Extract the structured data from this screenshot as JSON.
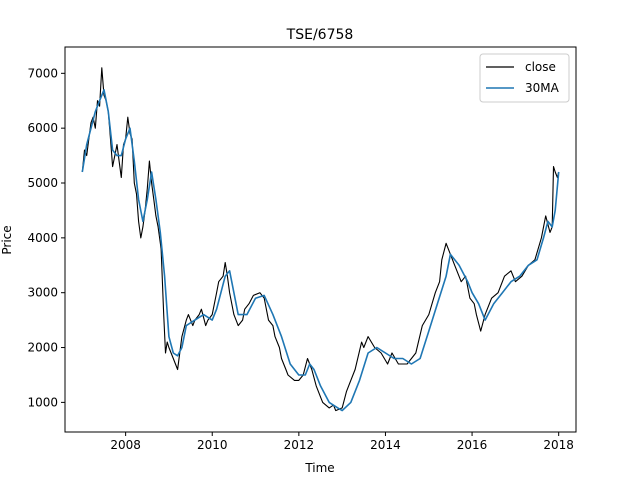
{
  "chart_data": {
    "type": "line",
    "title": "TSE/6758",
    "xlabel": "Time",
    "ylabel": "Price",
    "xlim": [
      2006.6,
      2018.4
    ],
    "ylim": [
      460,
      7480
    ],
    "xticks": [
      2008,
      2010,
      2012,
      2014,
      2016,
      2018
    ],
    "yticks": [
      1000,
      2000,
      3000,
      4000,
      5000,
      6000,
      7000
    ],
    "grid": false,
    "legend": "top-right",
    "colors": {
      "close": "#000000",
      "30MA": "#1f77b4"
    },
    "series": [
      {
        "name": "close",
        "x": [
          2007.0,
          2007.05,
          2007.1,
          2007.15,
          2007.2,
          2007.25,
          2007.3,
          2007.35,
          2007.4,
          2007.45,
          2007.5,
          2007.55,
          2007.6,
          2007.65,
          2007.7,
          2007.75,
          2007.8,
          2007.85,
          2007.9,
          2007.95,
          2008.0,
          2008.05,
          2008.1,
          2008.15,
          2008.2,
          2008.25,
          2008.3,
          2008.35,
          2008.4,
          2008.45,
          2008.5,
          2008.55,
          2008.6,
          2008.65,
          2008.7,
          2008.75,
          2008.82,
          2008.88,
          2008.92,
          2008.96,
          2009.0,
          2009.1,
          2009.2,
          2009.3,
          2009.4,
          2009.45,
          2009.55,
          2009.6,
          2009.7,
          2009.75,
          2009.85,
          2009.9,
          2010.0,
          2010.1,
          2010.15,
          2010.25,
          2010.3,
          2010.35,
          2010.4,
          2010.5,
          2010.6,
          2010.7,
          2010.75,
          2010.85,
          2010.95,
          2011.1,
          2011.2,
          2011.3,
          2011.4,
          2011.45,
          2011.55,
          2011.6,
          2011.7,
          2011.75,
          2011.9,
          2012.0,
          2012.1,
          2012.2,
          2012.25,
          2012.3,
          2012.4,
          2012.5,
          2012.55,
          2012.7,
          2012.8,
          2012.85,
          2013.0,
          2013.1,
          2013.2,
          2013.3,
          2013.45,
          2013.5,
          2013.6,
          2013.75,
          2013.9,
          2014.05,
          2014.15,
          2014.3,
          2014.5,
          2014.7,
          2014.85,
          2015.0,
          2015.15,
          2015.25,
          2015.3,
          2015.4,
          2015.5,
          2015.6,
          2015.75,
          2015.85,
          2015.95,
          2016.05,
          2016.1,
          2016.2,
          2016.3,
          2016.45,
          2016.6,
          2016.75,
          2016.9,
          2017.0,
          2017.15,
          2017.3,
          2017.45,
          2017.6,
          2017.7,
          2017.8,
          2017.85,
          2017.88,
          2017.92,
          2017.97,
          2018.0
        ],
        "values": [
          5200,
          5600,
          5500,
          5800,
          6100,
          6200,
          6000,
          6500,
          6400,
          7100,
          6600,
          6500,
          6300,
          5800,
          5300,
          5500,
          5700,
          5400,
          5100,
          5700,
          5800,
          6200,
          5900,
          5800,
          5000,
          4800,
          4300,
          4000,
          4200,
          4500,
          4900,
          5400,
          5000,
          4700,
          4400,
          4200,
          3800,
          2600,
          1900,
          2100,
          2000,
          1800,
          1600,
          2200,
          2500,
          2600,
          2400,
          2500,
          2600,
          2700,
          2400,
          2500,
          2600,
          3000,
          3200,
          3300,
          3550,
          3300,
          3000,
          2600,
          2400,
          2500,
          2700,
          2800,
          2950,
          3000,
          2900,
          2500,
          2400,
          2200,
          2000,
          1800,
          1600,
          1500,
          1400,
          1400,
          1500,
          1800,
          1700,
          1600,
          1300,
          1100,
          1000,
          900,
          950,
          850,
          900,
          1200,
          1400,
          1600,
          2100,
          2000,
          2200,
          2000,
          1900,
          1700,
          1900,
          1700,
          1700,
          1900,
          2400,
          2600,
          3000,
          3200,
          3600,
          3900,
          3700,
          3500,
          3200,
          3300,
          2900,
          2800,
          2600,
          2300,
          2600,
          2900,
          3000,
          3300,
          3400,
          3200,
          3300,
          3500,
          3600,
          4000,
          4400,
          4100,
          4200,
          5300,
          5200,
          5100,
          5200
        ]
      },
      {
        "name": "30MA",
        "x": [
          2007.0,
          2007.1,
          2007.2,
          2007.3,
          2007.4,
          2007.5,
          2007.6,
          2007.7,
          2007.8,
          2007.9,
          2008.0,
          2008.1,
          2008.2,
          2008.3,
          2008.4,
          2008.5,
          2008.6,
          2008.7,
          2008.8,
          2008.9,
          2009.0,
          2009.1,
          2009.2,
          2009.3,
          2009.4,
          2009.6,
          2009.8,
          2010.0,
          2010.1,
          2010.2,
          2010.3,
          2010.4,
          2010.5,
          2010.6,
          2010.8,
          2011.0,
          2011.2,
          2011.4,
          2011.6,
          2011.8,
          2012.0,
          2012.15,
          2012.25,
          2012.35,
          2012.5,
          2012.7,
          2012.9,
          2013.0,
          2013.2,
          2013.4,
          2013.6,
          2013.8,
          2014.0,
          2014.2,
          2014.4,
          2014.6,
          2014.8,
          2015.0,
          2015.2,
          2015.4,
          2015.5,
          2015.7,
          2015.9,
          2016.0,
          2016.15,
          2016.3,
          2016.5,
          2016.7,
          2016.9,
          2017.1,
          2017.3,
          2017.5,
          2017.65,
          2017.75,
          2017.85,
          2017.92,
          2018.0
        ],
        "values": [
          5200,
          5700,
          6000,
          6300,
          6500,
          6700,
          6300,
          5600,
          5500,
          5500,
          5800,
          6000,
          5400,
          4700,
          4300,
          4700,
          5200,
          4700,
          4100,
          3300,
          2200,
          1900,
          1850,
          2000,
          2400,
          2500,
          2600,
          2500,
          2700,
          3000,
          3300,
          3400,
          3000,
          2600,
          2600,
          2900,
          2950,
          2600,
          2200,
          1700,
          1500,
          1500,
          1700,
          1600,
          1300,
          1000,
          900,
          850,
          1000,
          1400,
          1900,
          2000,
          1900,
          1800,
          1800,
          1700,
          1800,
          2300,
          2800,
          3300,
          3700,
          3500,
          3200,
          3000,
          2800,
          2500,
          2800,
          3000,
          3200,
          3300,
          3500,
          3600,
          4000,
          4300,
          4200,
          4500,
          5200
        ]
      }
    ]
  }
}
